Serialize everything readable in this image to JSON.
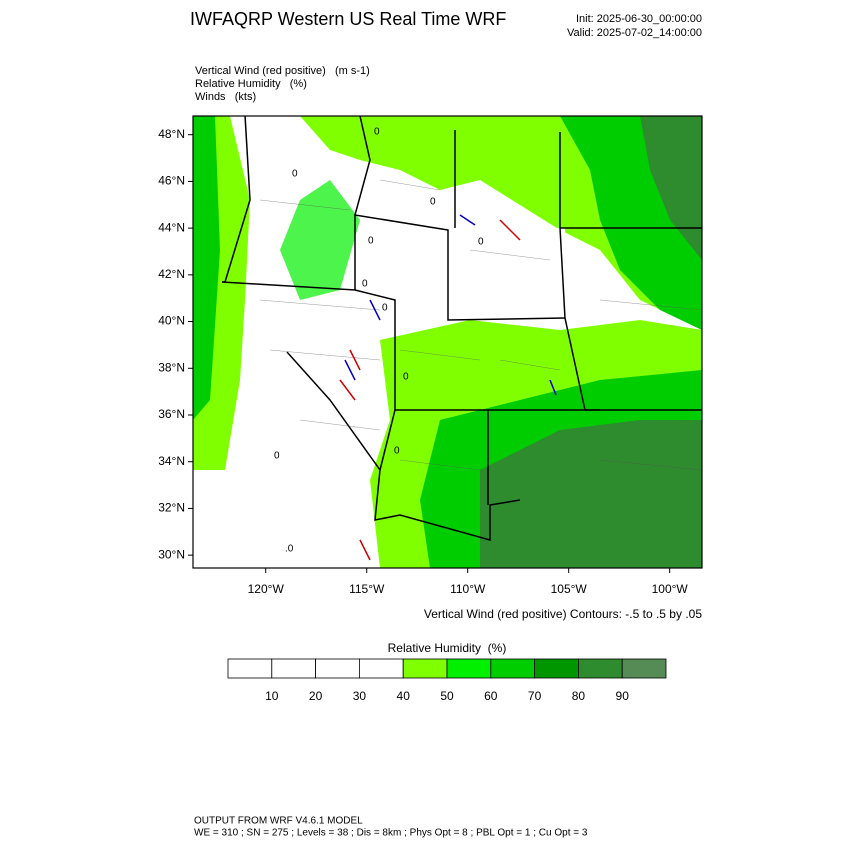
{
  "header": {
    "title": "IWFAQRP Western US Real Time WRF",
    "init": "Init: 2025-06-30_00:00:00",
    "valid": "Valid: 2025-07-02_14:00:00"
  },
  "fields": [
    "Vertical Wind (red positive)   (m s-1)",
    "Relative Humidity   (%)",
    "Winds   (kts)"
  ],
  "map": {
    "xlim": [
      -123.6,
      -98.4
    ],
    "ylim": [
      29.45,
      48.8
    ],
    "xticks": [
      {
        "value": -120,
        "label": "120°W"
      },
      {
        "value": -115,
        "label": "115°W"
      },
      {
        "value": -110,
        "label": "110°W"
      },
      {
        "value": -105,
        "label": "105°W"
      },
      {
        "value": -100,
        "label": "100°W"
      }
    ],
    "yticks": [
      {
        "value": 30,
        "label": "30°N"
      },
      {
        "value": 32,
        "label": "32°N"
      },
      {
        "value": 34,
        "label": "34°N"
      },
      {
        "value": 36,
        "label": "36°N"
      },
      {
        "value": 38,
        "label": "38°N"
      },
      {
        "value": 40,
        "label": "40°N"
      },
      {
        "value": 42,
        "label": "42°N"
      },
      {
        "value": 44,
        "label": "44°N"
      },
      {
        "value": 46,
        "label": "46°N"
      },
      {
        "value": 48,
        "label": "48°N"
      }
    ],
    "contour_labels": [
      "0",
      "0",
      "0",
      "0",
      "0",
      "0",
      "0",
      "0",
      "0",
      "0",
      ".0"
    ],
    "contour_note": "Vertical Wind (red positive) Contours: -.5 to .5 by .05"
  },
  "colorbar": {
    "title": "Relative Humidity  (%)",
    "bounds": [
      10,
      20,
      30,
      40,
      50,
      60,
      70,
      80,
      90
    ],
    "colors": [
      "#ffffff",
      "#ffffff",
      "#ffffff",
      "#ffffff",
      "#80ff00",
      "#00f000",
      "#00cd00",
      "#009600",
      "#2e8b2e",
      "#558b55"
    ]
  },
  "footer": [
    "OUTPUT FROM WRF V4.6.1 MODEL",
    "WE = 310 ; SN = 275 ; Levels = 38 ; Dis = 8km ; Phys Opt = 8 ; PBL Opt = 1 ; Cu Opt = 3"
  ]
}
